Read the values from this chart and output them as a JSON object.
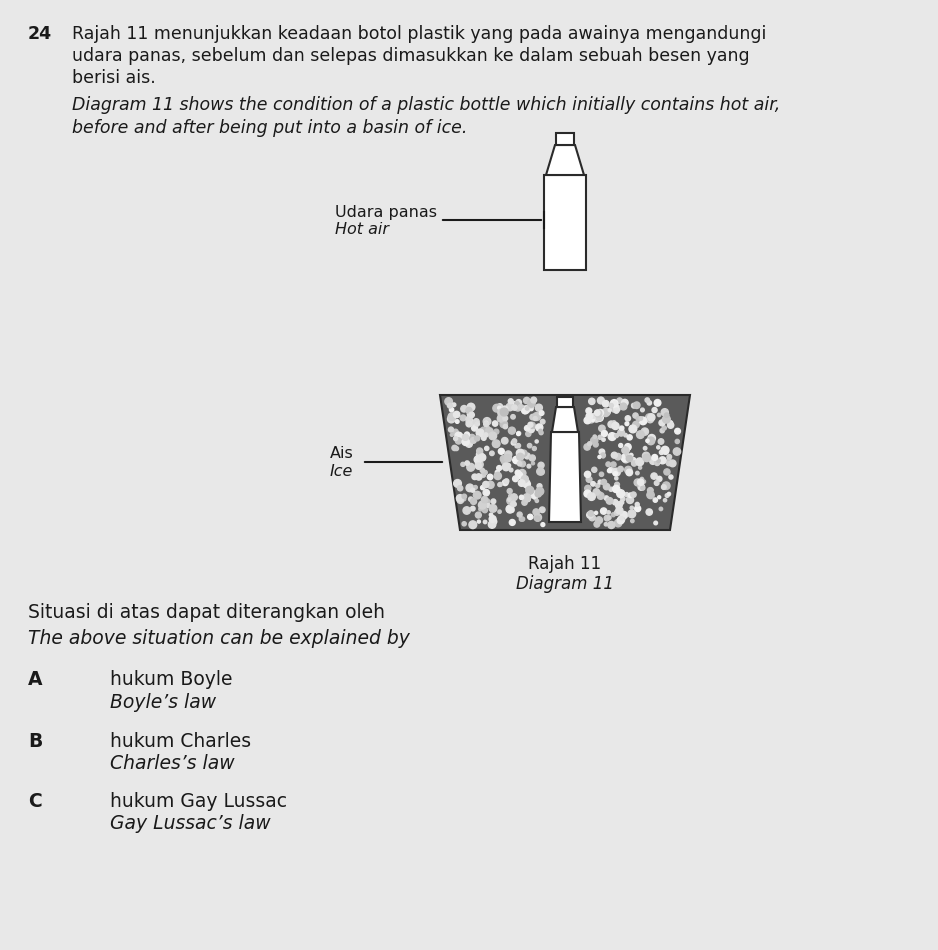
{
  "background_color": "#e8e8e8",
  "question_number": "24",
  "malay_text_line1": "Rajah 11 menunjukkan keadaan botol plastik yang pada awainya mengandungi",
  "malay_text_line2": "udara panas, sebelum dan selepas dimasukkan ke dalam sebuah besen yang",
  "malay_text_line3": "berisi ais.",
  "english_text_line1": "Diagram 11 shows the condition of a plastic bottle which initially contains hot air,",
  "english_text_line2": "before and after being put into a basin of ice.",
  "label_udara_panas": "Udara panas",
  "label_hot_air": "Hot air",
  "label_ais": "Ais",
  "label_ice": "Ice",
  "diagram_label_malay": "Rajah 11",
  "diagram_label_english": "Diagram 11",
  "situasi_text": "Situasi di atas dapat diterangkan oleh",
  "explained_text": "The above situation can be explained by",
  "option_A_malay": "hukum Boyle",
  "option_A_english": "Boyle’s law",
  "option_B_malay": "hukum Charles",
  "option_B_english": "Charles’s law",
  "option_C_malay": "hukum Gay Lussac",
  "option_C_english": "Gay Lussac’s law",
  "text_color": "#1a1a1a",
  "bottle_edge_color": "#2a2a2a",
  "basin_fill": "#555555",
  "ice_fill": "#4a4a4a"
}
